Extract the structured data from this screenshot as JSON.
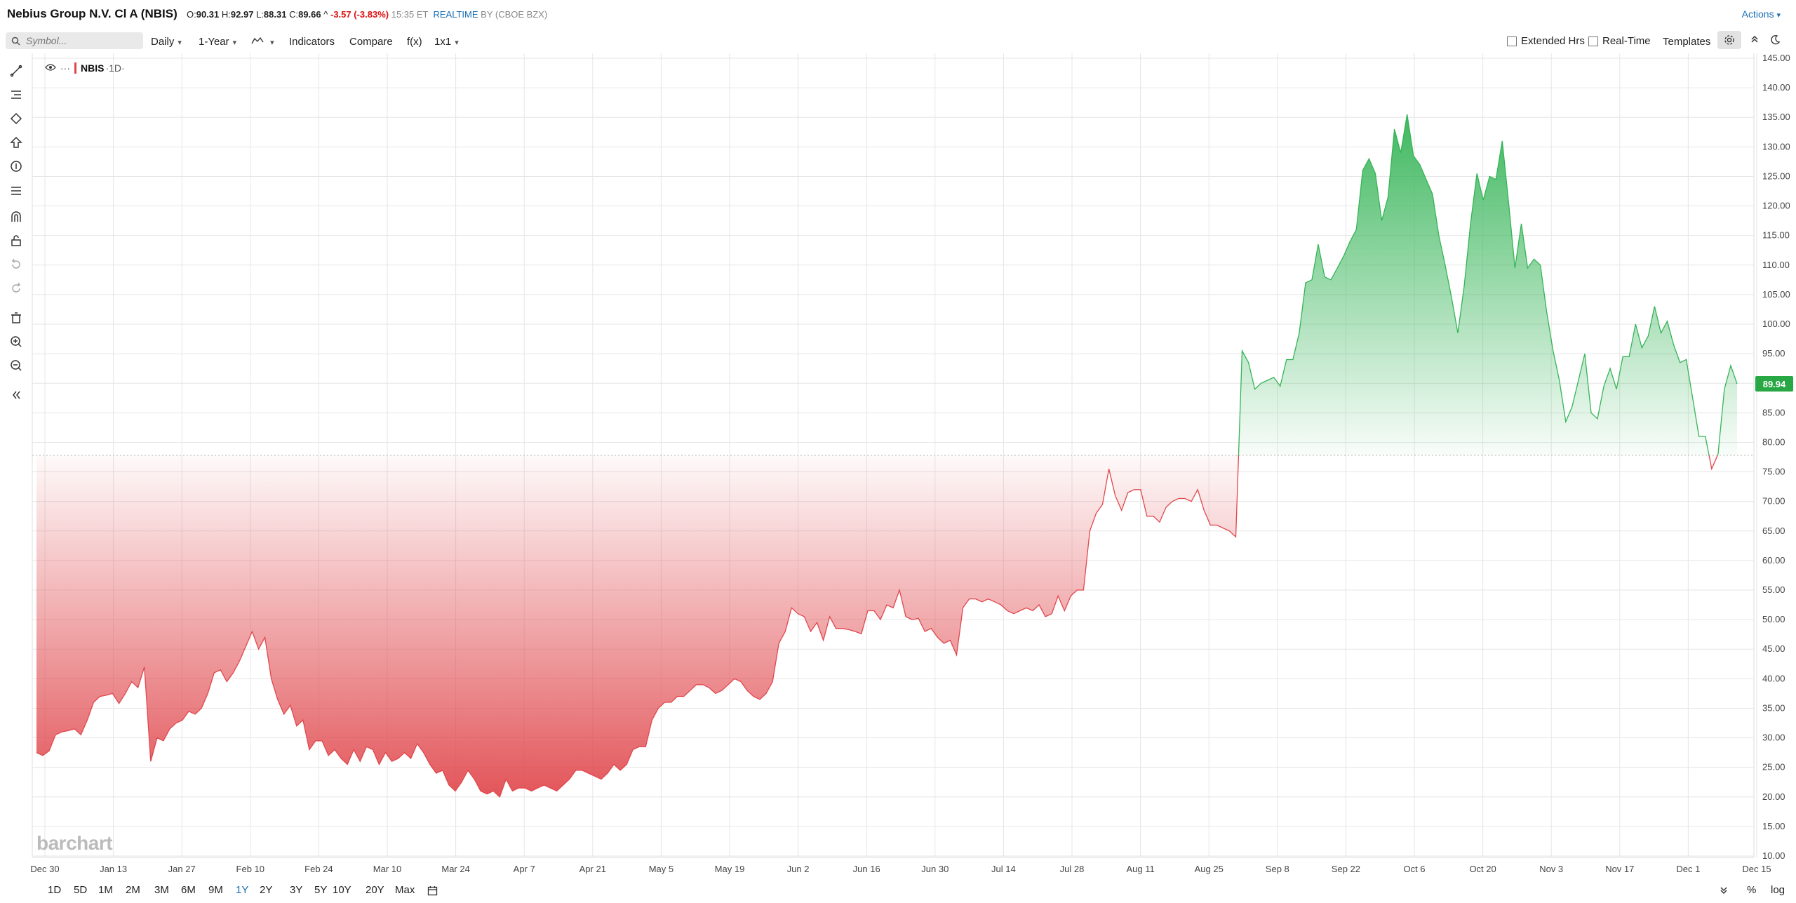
{
  "header": {
    "title": "Nebius Group N.V. Cl A (NBIS)",
    "open_label": "O:",
    "open": "90.31",
    "high_label": "H:",
    "high": "92.97",
    "low_label": "L:",
    "low": "88.31",
    "close_label": "C:",
    "close": "89.66",
    "change_arrow": "^",
    "change": "-3.57 (-3.83%)",
    "time": "15:35 ET",
    "realtime": "REALTIME",
    "source": "BY (CBOE BZX)",
    "actions": "Actions"
  },
  "toolbar": {
    "symbol_placeholder": "Symbol...",
    "interval": "Daily",
    "period": "1-Year",
    "indicators": "Indicators",
    "compare": "Compare",
    "fx": "f(x)",
    "layout": "1x1",
    "extended_hours": "Extended Hrs",
    "real_time": "Real-Time",
    "templates": "Templates"
  },
  "legend": {
    "dots": "···",
    "symbol": "NBIS",
    "interval": "·1D·"
  },
  "watermark": "barchart",
  "last_price": "89.94",
  "ranges": [
    "1D",
    "5D",
    "1M",
    "2M",
    "3M",
    "6M",
    "9M",
    "1Y",
    "2Y",
    "3Y",
    "5Y",
    "10Y",
    "20Y",
    "Max"
  ],
  "active_range": "1Y",
  "bottom_right": {
    "percent": "%",
    "log": "log"
  },
  "colors": {
    "up": "#34b456",
    "down": "#e0474c",
    "accent": "#1a6fb3"
  },
  "chart_data": {
    "type": "area",
    "title": "",
    "baseline": 77.8,
    "ylim": [
      10,
      145
    ],
    "y_ticks": [
      "145.00",
      "140.00",
      "135.00",
      "130.00",
      "125.00",
      "120.00",
      "115.00",
      "110.00",
      "105.00",
      "100.00",
      "95.00",
      "90.00",
      "85.00",
      "80.00",
      "75.00",
      "70.00",
      "65.00",
      "60.00",
      "55.00",
      "50.00",
      "45.00",
      "40.00",
      "35.00",
      "30.00",
      "25.00",
      "20.00",
      "15.00",
      "10.00"
    ],
    "x_ticks": [
      "Dec 30",
      "Jan 13",
      "Jan 27",
      "Feb 10",
      "Feb 24",
      "Mar 10",
      "Mar 24",
      "Apr 7",
      "Apr 21",
      "May 5",
      "May 19",
      "Jun 2",
      "Jun 16",
      "Jun 30",
      "Jul 14",
      "Jul 28",
      "Aug 11",
      "Aug 25",
      "Sep 8",
      "Sep 22",
      "Oct 6",
      "Oct 20",
      "Nov 3",
      "Nov 17",
      "Dec 1",
      "Dec 15"
    ],
    "grid": true,
    "series": [
      {
        "values": [
          27.5,
          27,
          27.8,
          30.5,
          31,
          31.2,
          31.5,
          30.5,
          33,
          36,
          37,
          37.2,
          37.5,
          35.8,
          37.5,
          39.5,
          38.5,
          42,
          26,
          30,
          29.5,
          31.5,
          32.5,
          33,
          34.5,
          34,
          35,
          37.5,
          41,
          41.5,
          39.5,
          41,
          43,
          45.5,
          48,
          45,
          47,
          40,
          36.5,
          34,
          35.5,
          32,
          33,
          28,
          29.5,
          29.5,
          27,
          28,
          26.5,
          25.5,
          28,
          26,
          28.5,
          28,
          25.5,
          27.5,
          26,
          26.5,
          27.5,
          26.5,
          29,
          27.5,
          25.5,
          24,
          24.5,
          22,
          21,
          22.5,
          24.5,
          23,
          21,
          20.5,
          21,
          20,
          23,
          21,
          21.5,
          21.5,
          21,
          21.5,
          22,
          21.5,
          21,
          22,
          23,
          24.5,
          24.5,
          24,
          23.5,
          23,
          24,
          25.5,
          24.5,
          25.5,
          28,
          28.5,
          28.5,
          33,
          35,
          36,
          36,
          37,
          37,
          38,
          39,
          39,
          38.5,
          37.5,
          38,
          39,
          40,
          39.5,
          38,
          37,
          36.5,
          37.5,
          39.5,
          46,
          48,
          52,
          51,
          50.5,
          48,
          49.5,
          46.5,
          50.5,
          48.5,
          48.5,
          48.3,
          48,
          47.6,
          51.5,
          51.5,
          50,
          52.5,
          52,
          55,
          50.5,
          50,
          50.2,
          48,
          48.5,
          47,
          46,
          46.5,
          44,
          52,
          53.5,
          53.5,
          53,
          53.5,
          53,
          52.5,
          51.5,
          51,
          51.5,
          52,
          51.5,
          52.5,
          50.5,
          51,
          54,
          51.5,
          54,
          55,
          55,
          65,
          68,
          69.5,
          75.5,
          71,
          68.5,
          71.5,
          72,
          72,
          67.5,
          67.5,
          66.5,
          69,
          70,
          70.5,
          70.5,
          70,
          72,
          68.5,
          66,
          66,
          65.5,
          65,
          64,
          95.5,
          93.5,
          89,
          90,
          90.5,
          91,
          89.5,
          94,
          94,
          98.5,
          107,
          107.5,
          113.5,
          108,
          107.5,
          109.5,
          111.5,
          114,
          116,
          126,
          128,
          125.5,
          117.5,
          121.5,
          133,
          129,
          135.5,
          128.5,
          127,
          124.5,
          122,
          115,
          110,
          104.5,
          98.5,
          106.5,
          117,
          125.5,
          121,
          125,
          124.5,
          131,
          120.5,
          109.5,
          117,
          109.5,
          111,
          110,
          102,
          95.5,
          90.5,
          83.5,
          86,
          90.5,
          95,
          85,
          84,
          89.5,
          92.5,
          89,
          94.5,
          94.5,
          100,
          96,
          98,
          103,
          98.5,
          100.5,
          96.5,
          93.5,
          94,
          87.5,
          81,
          81,
          75.5,
          78,
          89,
          93,
          89.9
        ]
      }
    ]
  }
}
